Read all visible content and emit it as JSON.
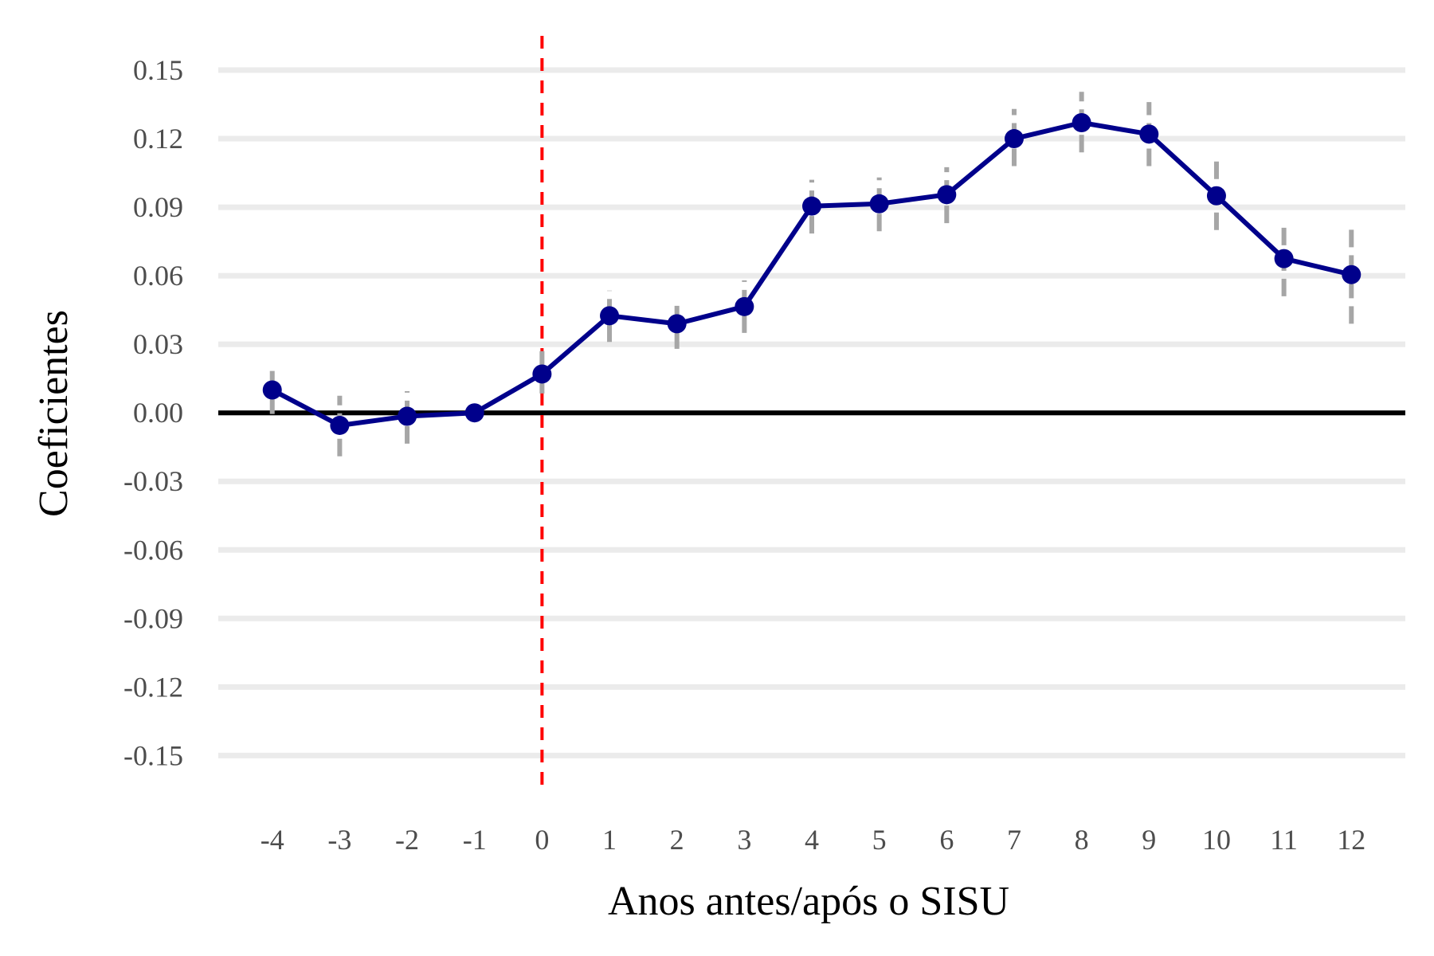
{
  "chart_data": {
    "type": "line",
    "title": "",
    "xlabel": "Anos antes/após o SISU",
    "ylabel": "Coeficientes",
    "x": [
      -4,
      -3,
      -2,
      -1,
      0,
      1,
      2,
      3,
      4,
      5,
      6,
      7,
      8,
      9,
      10,
      11,
      12
    ],
    "x_tick_labels": [
      "-4",
      "-3",
      "-2",
      "-1",
      "0",
      "1",
      "2",
      "3",
      "4",
      "5",
      "6",
      "7",
      "8",
      "9",
      "10",
      "11",
      "12"
    ],
    "series": [
      {
        "values": [
          0.01,
          -0.0055,
          -0.0015,
          0.0,
          0.017,
          0.0425,
          0.039,
          0.0465,
          0.0905,
          0.0915,
          0.0955,
          0.12,
          0.127,
          0.122,
          0.095,
          0.0675,
          0.0605
        ],
        "ci_low": [
          -0.0005,
          -0.019,
          -0.0135,
          0.0,
          0.0085,
          0.031,
          0.028,
          0.035,
          0.0785,
          0.0795,
          0.083,
          0.108,
          0.114,
          0.108,
          0.08,
          0.051,
          0.039
        ],
        "ci_high": [
          0.0205,
          0.0075,
          0.0095,
          0.0,
          0.027,
          0.0535,
          0.05,
          0.058,
          0.102,
          0.103,
          0.1075,
          0.133,
          0.1405,
          0.136,
          0.1105,
          0.084,
          0.0815
        ],
        "color": "#00008b"
      }
    ],
    "y_ticks": [
      0.15,
      0.12,
      0.09,
      0.06,
      0.03,
      0.0,
      -0.03,
      -0.06,
      -0.09,
      -0.12,
      -0.15
    ],
    "y_tick_labels": [
      "0.15",
      "0.12",
      "0.09",
      "0.06",
      "0.03",
      "0.00",
      "-0.03",
      "-0.06",
      "-0.09",
      "-0.12",
      "-0.15"
    ],
    "ylim": [
      -0.168,
      0.165
    ],
    "xlim": [
      -4.8,
      12.8
    ],
    "reference_lines": {
      "horizontal_zero": {
        "y": 0,
        "color": "#000000"
      },
      "vertical_event": {
        "x": 0,
        "color": "#ff0000",
        "style": "dashed"
      }
    },
    "grid": "horizontal",
    "grid_color": "#ebebeb",
    "ci_color": "#a6a6a6",
    "legend": "none"
  }
}
